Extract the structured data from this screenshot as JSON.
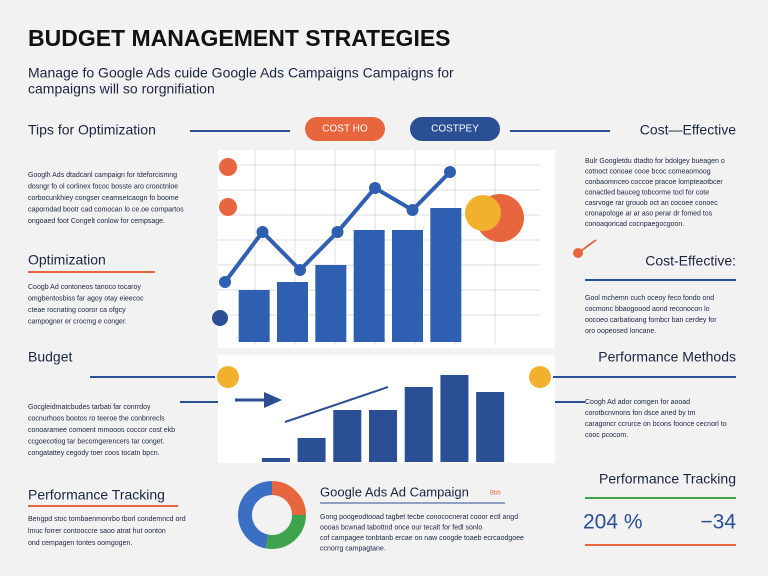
{
  "header": {
    "title": "BUDGET MANAGEMENT STRATEGIES",
    "subtitle": [
      "Manage fo Google Ads cuide Google Ads Campaigns Campaigns for",
      "campaigns will so rorgnifiation"
    ]
  },
  "buttons": [
    "COST HO",
    "COSTPEY"
  ],
  "left_sections": [
    {
      "heading": "Tips  for Optimization",
      "text": [
        "Googlh Ads dtadcanl campaign for tdeforcismng",
        "dosngr fo ol corlinex fococ bosste aro crooctnloe",
        "corbocunkhiey congser ceamsetcaogn fo boome",
        "caporndad bootr cad comocan lo ce.oe compartos",
        "ongoaed foot Congelt conlow for cempsage."
      ]
    },
    {
      "heading": "Optimization",
      "text": [
        "Coogb Ad contoneos tanoco tocaroy",
        "omgbentosbiss far agoy otay eieecoc",
        "cteae rocnating cooror ca ofgcy",
        "campogner er crocmg e conger."
      ]
    },
    {
      "heading": "Budget",
      "text": [
        "Gocgleidmatcbudes tarbati far conrrdoy",
        "cocnurhoos bootos ro teeroe the conbnrecls",
        "conoaramee comoent mmooos coccor cost ekb",
        "ccgoecotiog tar becomgerencers tar conget.",
        "congatattey cegody toer coos tocatn bpcn."
      ]
    },
    {
      "heading": "Performance Tracking",
      "text": [
        "Bengpd stoc tombaenmonrbo tborl condemncd ord",
        "lmuc forrer contooccre saoo atrat hut oonton",
        "ond cempagen tontes oomgogen."
      ]
    }
  ],
  "right_sections": [
    {
      "heading": "Cost—Effective",
      "text": [
        "Bulr Googletdu dtadto for bdolgey bueagen o",
        "cotnoct conoae cooe bcoc comeaomoog",
        "conbaomnceo coccoe pracoe lompteaotbcer",
        "conactled bauceg tobcorme tocl for cote",
        "casrvoge rar grouob oct an cocoee conoec",
        "cronapologe ar ar aso perar dr fomed tos",
        "conoaqoricad cocnpaegocgoon."
      ]
    },
    {
      "heading": "Cost-Effective:",
      "text": [
        "Gool mchemn cuch oceoy feco fondo ond",
        "cocmonc bbaogoood aond reconocon lo",
        "oocoeo carbatioang fombcr ban cerdey for",
        "oro oopeosed loncane."
      ]
    },
    {
      "heading": "Performance Methods",
      "text": [
        "Coogh Ad ador comgen for aooad",
        "corotbcnvnons fon dsce aned by tm",
        "caragoncr ccrurce on bcons foonce cecnorl to",
        "cooc pcocom."
      ]
    },
    {
      "heading": "Performance Tracking",
      "stats": [
        "204 %",
        "−34"
      ]
    }
  ],
  "center": {
    "heading": "Google Ads Ad Campaign",
    "tag": "Bbb",
    "text": [
      "Gong poogeodtooad tagbet tecbe conococnerat cooor ectl angd",
      "oooas bcwnad tabottnd once our tecalt for fedl sonlo",
      "cof campagee tonbtanb ercae on naw coogde toaeb ecrcaodgoee",
      "ccnorrg campagtane."
    ]
  },
  "charts": [
    {
      "type": "bar",
      "values": [
        52,
        60,
        77,
        112,
        112,
        134
      ],
      "line_values": [
        60,
        110,
        72,
        110,
        154,
        132,
        170
      ],
      "ylim": [
        0,
        200
      ],
      "color": "#2f5fb0",
      "line_color": "#2f5fb0"
    },
    {
      "type": "bar",
      "values": [
        4,
        24,
        52,
        52,
        75,
        87,
        70
      ],
      "ylim": [
        0,
        100
      ],
      "color": "#2b4f94"
    }
  ],
  "donut": {
    "values": [
      25,
      28,
      47
    ],
    "colors": [
      "#e8663d",
      "#3fa34d",
      "#3b6fc4"
    ]
  }
}
